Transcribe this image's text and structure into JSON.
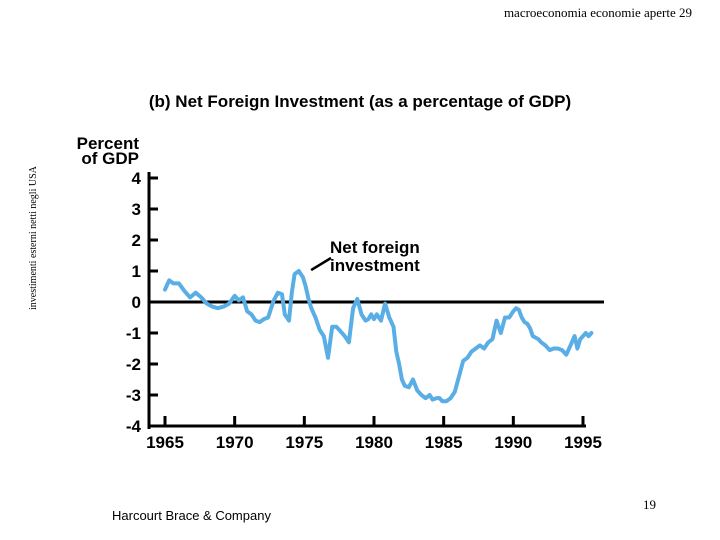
{
  "header": {
    "title": "macroeconomia economie aperte 29"
  },
  "side_label": "investimenti esterni netti negli USA",
  "footer": {
    "publisher": "Harcourt Brace & Company",
    "slide_number": "19"
  },
  "colors": {
    "series": "#5aaee6",
    "axis": "#000000"
  },
  "chart_data": {
    "type": "line",
    "title": "(b) Net Foreign Investment (as a percentage of GDP)",
    "ylabel_lines": [
      "Percent",
      "of GDP"
    ],
    "y_ticks": [
      "4",
      "3",
      "2",
      "1",
      "0",
      "-1",
      "-2",
      "-3",
      "-4"
    ],
    "x_ticks": [
      "1965",
      "1970",
      "1975",
      "1980",
      "1985",
      "1990",
      "1995"
    ],
    "xlim": [
      1965,
      1995
    ],
    "ylim": [
      -4,
      4
    ],
    "annotation": {
      "lines": [
        "Net foreign",
        "investment"
      ],
      "target": {
        "x": 1975.2,
        "y": 0.9
      }
    },
    "series": [
      {
        "name": "Net foreign investment",
        "x": [
          1965.0,
          1965.3,
          1965.6,
          1966.0,
          1966.4,
          1966.8,
          1967.2,
          1967.6,
          1968.0,
          1968.4,
          1968.8,
          1969.2,
          1969.6,
          1970.0,
          1970.3,
          1970.6,
          1970.9,
          1971.2,
          1971.5,
          1971.8,
          1972.1,
          1972.4,
          1972.8,
          1973.1,
          1973.4,
          1973.6,
          1973.9,
          1974.1,
          1974.3,
          1974.6,
          1974.9,
          1975.1,
          1975.3,
          1975.5,
          1975.8,
          1976.1,
          1976.4,
          1976.7,
          1977.0,
          1977.3,
          1977.6,
          1977.9,
          1978.2,
          1978.5,
          1978.8,
          1979.1,
          1979.4,
          1979.6,
          1979.8,
          1980.0,
          1980.2,
          1980.5,
          1980.8,
          1981.1,
          1981.4,
          1981.6,
          1981.8,
          1982.0,
          1982.2,
          1982.5,
          1982.8,
          1983.1,
          1983.4,
          1983.7,
          1984.0,
          1984.2,
          1984.5,
          1984.7,
          1984.9,
          1985.2,
          1985.5,
          1985.8,
          1986.1,
          1986.4,
          1986.7,
          1987.0,
          1987.3,
          1987.6,
          1987.9,
          1988.2,
          1988.5,
          1988.8,
          1989.1,
          1989.4,
          1989.7,
          1990.0,
          1990.2,
          1990.4,
          1990.6,
          1990.8,
          1991.0,
          1991.2,
          1991.4,
          1991.6,
          1991.8,
          1992.0,
          1992.3,
          1992.6,
          1992.9,
          1993.2,
          1993.5,
          1993.8,
          1994.1,
          1994.4,
          1994.6,
          1994.8,
          1995.0,
          1995.2,
          1995.4,
          1995.6
        ],
        "values": [
          0.4,
          0.7,
          0.6,
          0.6,
          0.35,
          0.15,
          0.3,
          0.15,
          -0.05,
          -0.15,
          -0.2,
          -0.15,
          -0.05,
          0.2,
          0.05,
          0.15,
          -0.3,
          -0.4,
          -0.6,
          -0.65,
          -0.55,
          -0.5,
          0.05,
          0.3,
          0.25,
          -0.4,
          -0.6,
          0.3,
          0.9,
          1.0,
          0.8,
          0.5,
          0.1,
          -0.2,
          -0.5,
          -0.9,
          -1.1,
          -1.8,
          -0.8,
          -0.8,
          -0.95,
          -1.1,
          -1.3,
          -0.2,
          0.1,
          -0.4,
          -0.6,
          -0.55,
          -0.4,
          -0.55,
          -0.4,
          -0.6,
          -0.05,
          -0.5,
          -0.8,
          -1.6,
          -2.0,
          -2.5,
          -2.7,
          -2.75,
          -2.5,
          -2.85,
          -3.0,
          -3.1,
          -3.0,
          -3.15,
          -3.1,
          -3.1,
          -3.2,
          -3.2,
          -3.1,
          -2.9,
          -2.4,
          -1.9,
          -1.8,
          -1.6,
          -1.5,
          -1.4,
          -1.5,
          -1.3,
          -1.2,
          -0.6,
          -1.0,
          -0.5,
          -0.5,
          -0.3,
          -0.2,
          -0.25,
          -0.5,
          -0.65,
          -0.7,
          -0.85,
          -1.1,
          -1.15,
          -1.2,
          -1.3,
          -1.4,
          -1.55,
          -1.5,
          -1.5,
          -1.55,
          -1.7,
          -1.4,
          -1.1,
          -1.5,
          -1.2,
          -1.1,
          -1.0,
          -1.1,
          -1.0
        ]
      }
    ]
  }
}
